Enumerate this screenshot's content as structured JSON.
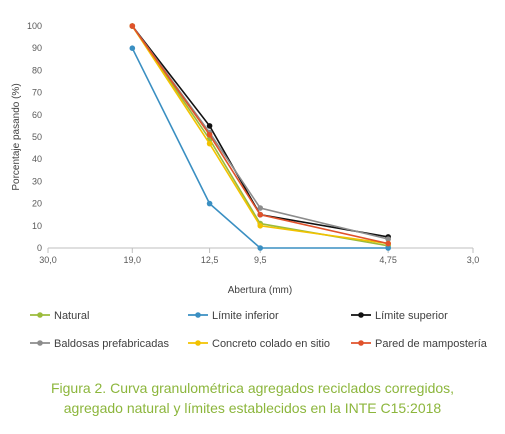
{
  "chart_data": {
    "type": "line",
    "title": "",
    "xlabel": "Abertura (mm)",
    "ylabel": "Porcentaje pasando (%)",
    "x_scale": "log",
    "x_reversed": true,
    "xlim": [
      30.0,
      3.0
    ],
    "ylim": [
      0,
      100
    ],
    "x_ticks": [
      {
        "value": 30.0,
        "label": "30,0"
      },
      {
        "value": 19.0,
        "label": "19,0"
      },
      {
        "value": 12.5,
        "label": "12,5"
      },
      {
        "value": 9.5,
        "label": "9,5"
      },
      {
        "value": 4.75,
        "label": "4,75"
      },
      {
        "value": 3.0,
        "label": "3,0"
      }
    ],
    "y_ticks": [
      0,
      10,
      20,
      30,
      40,
      50,
      60,
      70,
      80,
      90,
      100
    ],
    "grid": false,
    "legend_position": "bottom",
    "x": [
      19.0,
      12.5,
      9.5,
      4.75
    ],
    "series": [
      {
        "name": "Natural",
        "color": "#9bbb3b",
        "values": [
          100,
          49,
          11,
          1
        ]
      },
      {
        "name": "Límite inferior",
        "color": "#3a8fc2",
        "values": [
          90,
          20,
          0,
          0
        ]
      },
      {
        "name": "Límite superior",
        "color": "#111111",
        "values": [
          100,
          55,
          15,
          5
        ]
      },
      {
        "name": "Baldosas prefabricadas",
        "color": "#8c8c8c",
        "values": [
          100,
          52,
          18,
          4
        ]
      },
      {
        "name": "Concreto colado en sitio",
        "color": "#f2c200",
        "values": [
          100,
          47,
          10,
          2
        ]
      },
      {
        "name": "Pared de mampostería",
        "color": "#e0522b",
        "values": [
          100,
          51,
          15,
          2
        ]
      }
    ]
  },
  "caption": {
    "line1": "Figura 2. Curva granulométrica agregados reciclados corregidos,",
    "line2": "agregado natural y límites establecidos en la INTE C15:2018"
  }
}
